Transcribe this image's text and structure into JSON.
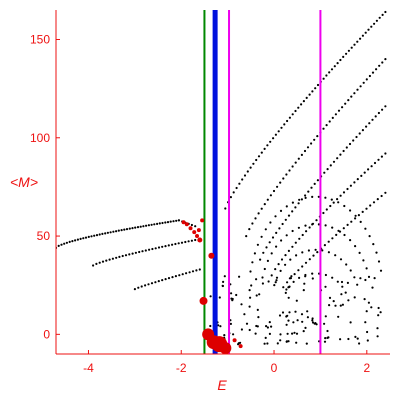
{
  "chart_data": {
    "type": "scatter",
    "title": "",
    "xlabel": "E",
    "ylabel": "<M>",
    "xlim": [
      -4.7,
      2.5
    ],
    "ylim": [
      -10,
      165
    ],
    "xticks": [
      -4,
      -2,
      0,
      2
    ],
    "yticks": [
      0,
      50,
      100,
      150
    ],
    "xtick_labels": [
      "-4",
      "-2",
      "0",
      "2"
    ],
    "ytick_labels": [
      "0",
      "50",
      "100",
      "150"
    ],
    "grid": false,
    "axis_color": "#ee1111",
    "vertical_lines": [
      {
        "x": -1.5,
        "color": "#008800",
        "style": "thin"
      },
      {
        "x": -1.27,
        "color": "#0011dd",
        "style": "thick"
      },
      {
        "x": -0.97,
        "color": "#ee00ee",
        "style": "thin"
      },
      {
        "x": 1.0,
        "color": "#ee00ee",
        "style": "thin"
      }
    ],
    "black_points": {
      "color": "#000000",
      "curves": [
        {
          "x_from": -4.7,
          "x_to": -2.05,
          "n": 46,
          "y_from": 44,
          "y_to": 58,
          "pow": 0.7
        },
        {
          "x_from": -2.05,
          "x_to": -1.7,
          "n": 6,
          "y_from": 58,
          "y_to": 55,
          "pow": 1.0
        },
        {
          "x_from": -3.9,
          "x_to": -1.7,
          "n": 32,
          "y_from": 35,
          "y_to": 48,
          "pow": 0.8
        },
        {
          "x_from": -3.0,
          "x_to": -1.6,
          "n": 20,
          "y_from": 23,
          "y_to": 33,
          "pow": 0.9
        },
        {
          "x_from": -1.05,
          "x_to": 2.4,
          "n": 58,
          "y_from": 64,
          "y_to": 164,
          "pow": 0.85
        },
        {
          "x_from": -0.6,
          "x_to": 2.4,
          "n": 46,
          "y_from": 50,
          "y_to": 140,
          "pow": 0.85
        },
        {
          "x_from": -0.3,
          "x_to": 2.4,
          "n": 40,
          "y_from": 38,
          "y_to": 116,
          "pow": 0.85
        },
        {
          "x_from": -0.05,
          "x_to": 2.4,
          "n": 34,
          "y_from": 30,
          "y_to": 92,
          "pow": 0.85
        },
        {
          "x_from": 0.2,
          "x_to": 2.4,
          "n": 28,
          "y_from": 24,
          "y_to": 72,
          "pow": 0.9
        }
      ],
      "arcs": [
        {
          "cx": 0.9,
          "cy": 20,
          "rx": 1.45,
          "ry": 50,
          "a_from": 0.25,
          "a_to": 2.9,
          "n": 28
        },
        {
          "cx": 0.9,
          "cy": 18,
          "rx": 1.2,
          "ry": 38,
          "a_from": 0.3,
          "a_to": 2.85,
          "n": 22
        },
        {
          "cx": 0.9,
          "cy": 16,
          "rx": 0.95,
          "ry": 27,
          "a_from": 0.35,
          "a_to": 2.8,
          "n": 17
        },
        {
          "cx": 0.9,
          "cy": 15,
          "rx": 0.7,
          "ry": 16,
          "a_from": 0.4,
          "a_to": 2.75,
          "n": 12
        }
      ],
      "cloud": {
        "x_from": -1.4,
        "x_to": 2.4,
        "y_from": -5,
        "y_to": 30,
        "n": 150,
        "seed": 7
      }
    },
    "red_points": {
      "color": "#dd0000",
      "points": [
        {
          "x": -1.95,
          "y": 57,
          "r": 2
        },
        {
          "x": -1.88,
          "y": 56,
          "r": 2
        },
        {
          "x": -1.8,
          "y": 54,
          "r": 2
        },
        {
          "x": -1.72,
          "y": 52,
          "r": 2
        },
        {
          "x": -1.66,
          "y": 50,
          "r": 2
        },
        {
          "x": -1.6,
          "y": 48,
          "r": 2.5
        },
        {
          "x": -1.55,
          "y": 58,
          "r": 2
        },
        {
          "x": -1.62,
          "y": 53,
          "r": 2
        },
        {
          "x": -1.35,
          "y": 40,
          "r": 3
        },
        {
          "x": -1.52,
          "y": 17,
          "r": 4
        },
        {
          "x": -1.42,
          "y": 0,
          "r": 6
        },
        {
          "x": -1.3,
          "y": -4,
          "r": 7
        },
        {
          "x": -1.18,
          "y": -5,
          "r": 8
        },
        {
          "x": -1.05,
          "y": -7,
          "r": 6
        },
        {
          "x": -0.85,
          "y": -3,
          "r": 2
        },
        {
          "x": -0.72,
          "y": -6,
          "r": 2
        }
      ]
    }
  }
}
